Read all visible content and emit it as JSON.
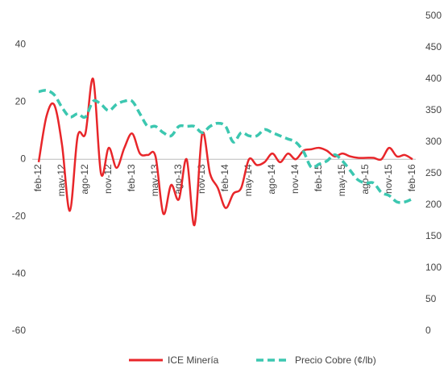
{
  "chart_data": {
    "type": "line",
    "categories": [
      "feb-12",
      null,
      null,
      "may-12",
      null,
      null,
      "ago-12",
      null,
      null,
      "nov-12",
      null,
      null,
      "feb-13",
      null,
      null,
      "may-13",
      null,
      null,
      "ago-13",
      null,
      null,
      "nov-13",
      null,
      null,
      "feb-14",
      null,
      null,
      "may-14",
      null,
      null,
      "ago-14",
      null,
      null,
      "nov-14",
      null,
      null,
      "feb-15",
      null,
      null,
      "may-15",
      null,
      null,
      "ago-15",
      null,
      null,
      "nov-15",
      null,
      null,
      "feb-16"
    ],
    "series": [
      {
        "name": "ICE Minería",
        "color": "#e8262a",
        "axis": "y",
        "values": [
          -1,
          15,
          19,
          5,
          -18,
          8,
          9,
          28,
          -5,
          4,
          -3,
          4,
          9,
          2,
          1.5,
          1,
          -19,
          -9,
          -14,
          0,
          -23,
          9,
          -5,
          -10,
          -17,
          -12,
          -10,
          0,
          -2,
          -1,
          2,
          -1,
          2,
          0,
          3,
          3.5,
          4,
          3,
          1,
          2,
          1,
          0.5,
          0.5,
          0.5,
          0,
          4,
          1,
          1.5,
          0
        ]
      },
      {
        "name": "Precio Cobre (¢/lb)",
        "color": "#3cc7b0",
        "axis": "y2",
        "dashed": true,
        "values": [
          380,
          382,
          375,
          355,
          340,
          345,
          340,
          365,
          360,
          350,
          360,
          365,
          365,
          345,
          325,
          325,
          315,
          310,
          325,
          325,
          325,
          315,
          325,
          330,
          325,
          300,
          315,
          310,
          310,
          320,
          315,
          310,
          305,
          300,
          285,
          260,
          265,
          270,
          280,
          270,
          255,
          240,
          235,
          235,
          220,
          215,
          205,
          205,
          210
        ]
      }
    ],
    "ylim": [
      -60,
      50
    ],
    "yticks": [
      -60,
      -40,
      -20,
      0,
      20,
      40
    ],
    "y2lim": [
      0,
      500
    ],
    "y2ticks": [
      0,
      50,
      100,
      150,
      200,
      250,
      300,
      350,
      400,
      450,
      500
    ]
  }
}
